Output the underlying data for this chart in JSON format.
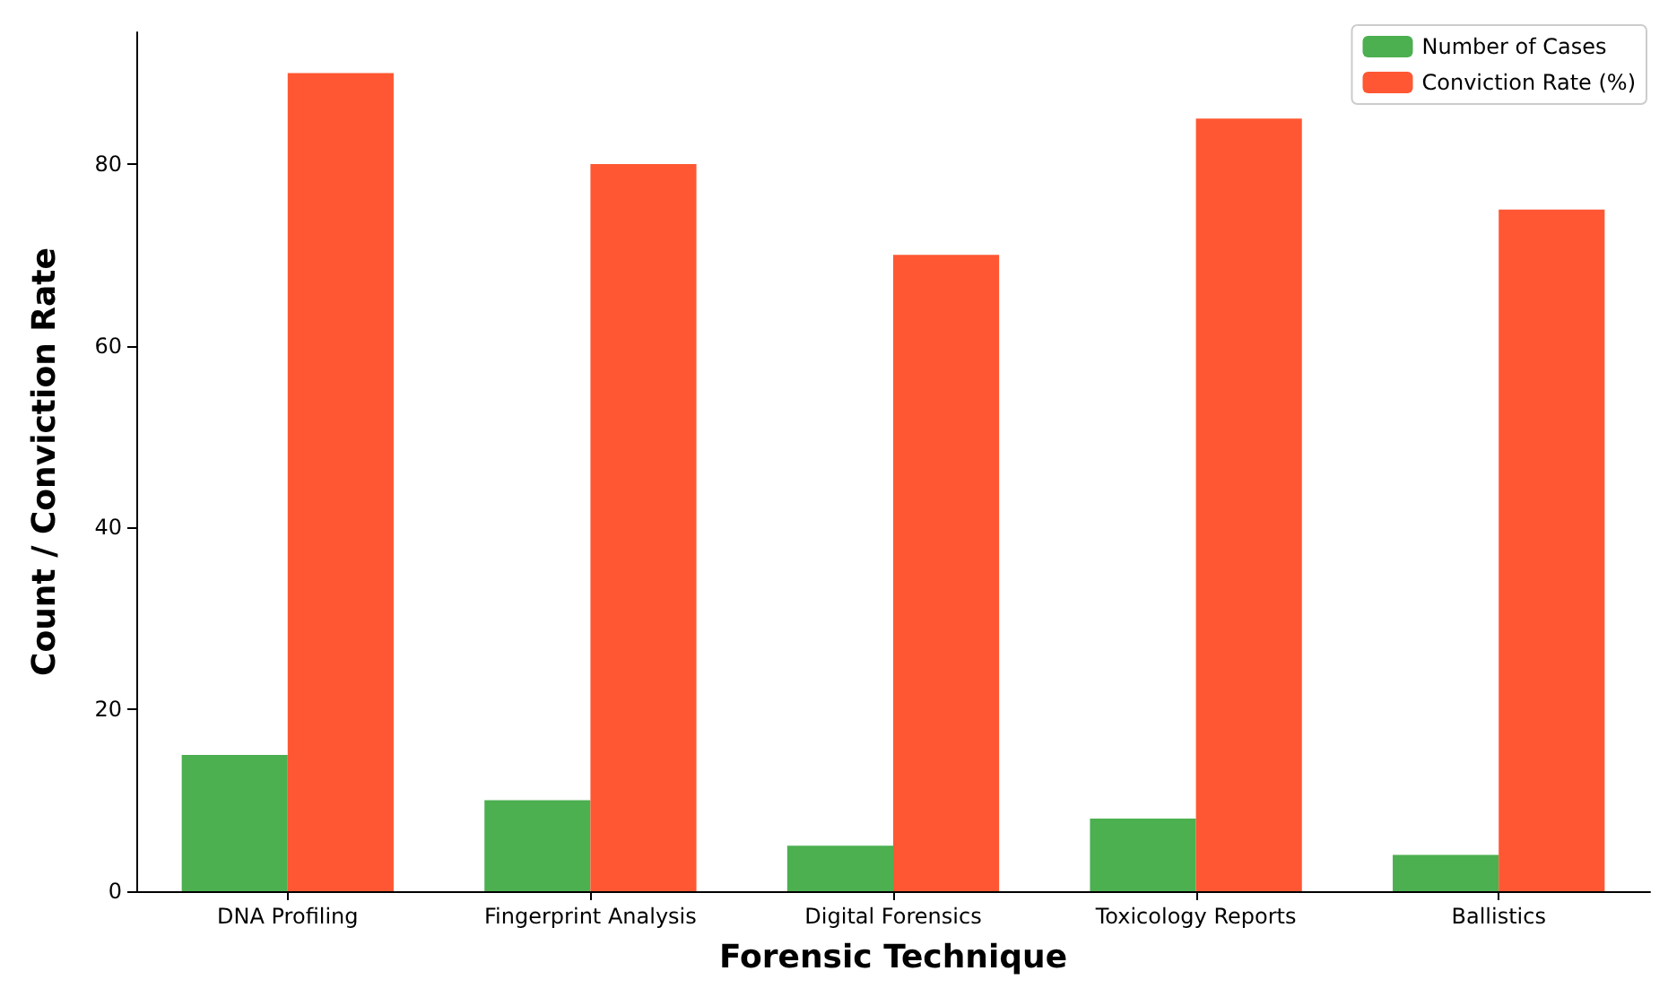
{
  "chart_data": {
    "type": "bar",
    "xlabel": "Forensic Technique",
    "ylabel": "Count / Conviction Rate",
    "categories": [
      "DNA Profiling",
      "Fingerprint Analysis",
      "Digital Forensics",
      "Toxicology Reports",
      "Ballistics"
    ],
    "series": [
      {
        "name": "Number of Cases",
        "color": "#4caf50",
        "values": [
          15,
          10,
          5,
          8,
          4
        ]
      },
      {
        "name": "Conviction Rate (%)",
        "color": "#ff5733",
        "values": [
          90,
          80,
          70,
          85,
          75
        ]
      }
    ],
    "ylim": [
      0,
      94.5
    ],
    "yticks": [
      0,
      20,
      40,
      60,
      80
    ],
    "grid": false,
    "legend": "top right"
  }
}
